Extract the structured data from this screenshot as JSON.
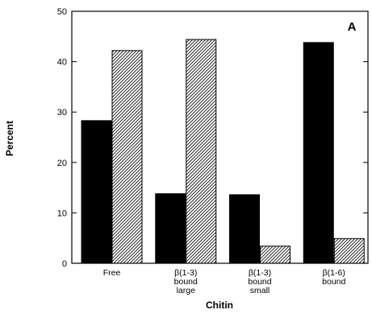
{
  "chart_data": {
    "type": "bar",
    "categories": [
      [
        "Free"
      ],
      [
        "β(1-3)",
        "bound",
        "large"
      ],
      [
        "β(1-3)",
        "bound",
        "small"
      ],
      [
        "β(1-6)",
        "bound"
      ]
    ],
    "series": [
      {
        "fill": "#000000",
        "values": [
          28.3,
          13.8,
          13.6,
          43.8
        ]
      },
      {
        "fill": "hatched",
        "values": [
          42.2,
          44.4,
          3.4,
          4.9
        ]
      }
    ],
    "xlabel": "Chitin",
    "ylabel": "Percent",
    "ylim": [
      0,
      50
    ],
    "yticks": [
      0,
      10,
      20,
      30,
      40,
      50
    ],
    "panel_label": "A",
    "grid": false,
    "legend": "none"
  }
}
